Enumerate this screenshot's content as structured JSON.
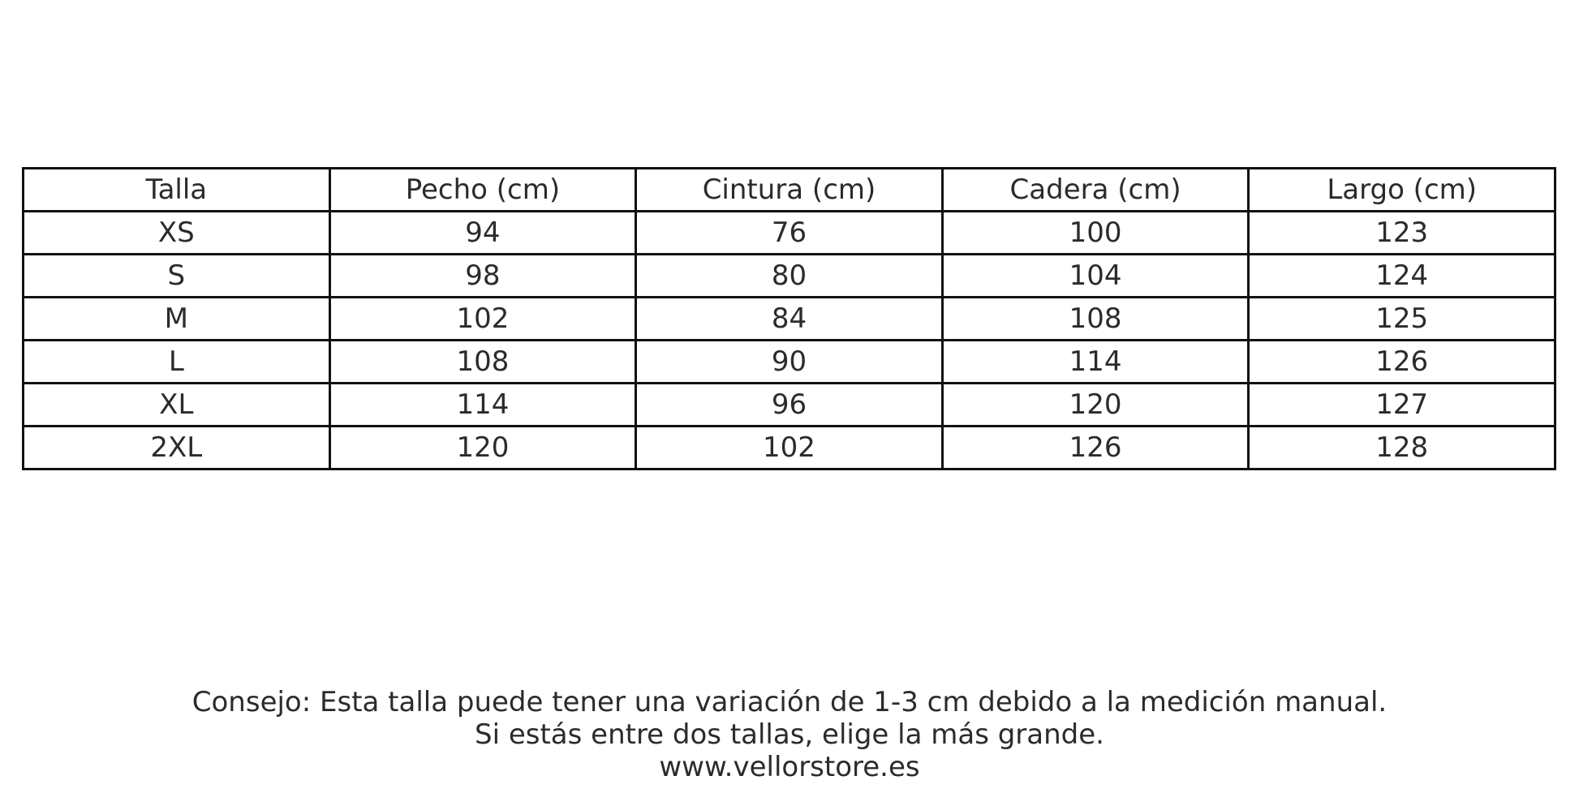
{
  "table": {
    "headers": [
      "Talla",
      "Pecho (cm)",
      "Cintura (cm)",
      "Cadera (cm)",
      "Largo (cm)"
    ],
    "rows": [
      [
        "XS",
        "94",
        "76",
        "100",
        "123"
      ],
      [
        "S",
        "98",
        "80",
        "104",
        "124"
      ],
      [
        "M",
        "102",
        "84",
        "108",
        "125"
      ],
      [
        "L",
        "108",
        "90",
        "114",
        "126"
      ],
      [
        "XL",
        "114",
        "96",
        "120",
        "127"
      ],
      [
        "2XL",
        "120",
        "102",
        "126",
        "128"
      ]
    ]
  },
  "footer": {
    "line1": "Consejo: Esta talla puede tener una variación de 1-3 cm debido a la medición manual.",
    "line2": "Si estás entre dos tallas, elige la más grande.",
    "website": "www.vellorstore.es"
  }
}
